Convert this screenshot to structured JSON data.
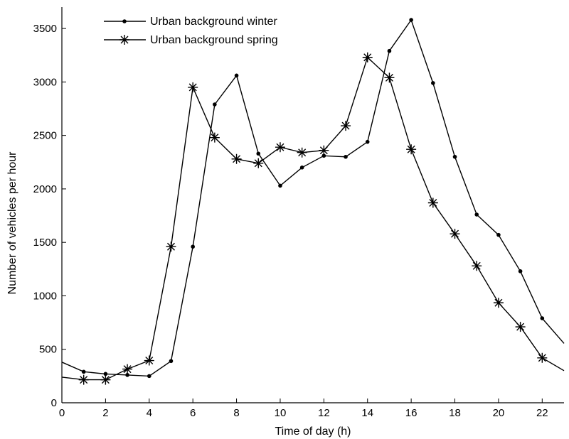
{
  "chart_data": {
    "type": "line",
    "title": "",
    "xlabel": "Time of day (h)",
    "ylabel": "Number of vehicles per hour",
    "xlim": [
      0,
      23
    ],
    "ylim": [
      0,
      3700
    ],
    "xticks": [
      0,
      2,
      4,
      6,
      8,
      10,
      12,
      14,
      16,
      18,
      20,
      22
    ],
    "yticks": [
      0,
      500,
      1000,
      1500,
      2000,
      2500,
      3000,
      3500
    ],
    "grid": false,
    "legend_position": "top-left",
    "x": [
      0,
      1,
      2,
      3,
      4,
      5,
      6,
      7,
      8,
      9,
      10,
      11,
      12,
      13,
      14,
      15,
      16,
      17,
      18,
      19,
      20,
      21,
      22,
      23
    ],
    "series": [
      {
        "name": "Urban background winter",
        "marker": "dot",
        "color": "#000000",
        "values": [
          380,
          290,
          270,
          260,
          250,
          390,
          1460,
          2790,
          3060,
          2330,
          2030,
          2200,
          2310,
          2300,
          2440,
          3290,
          3580,
          2990,
          2300,
          1760,
          1570,
          1230,
          790,
          555
        ]
      },
      {
        "name": "Urban background spring",
        "marker": "asterisk",
        "color": "#000000",
        "values": [
          240,
          215,
          215,
          315,
          395,
          1460,
          2950,
          2480,
          2280,
          2240,
          2390,
          2340,
          2360,
          2590,
          3230,
          3040,
          2370,
          1870,
          1580,
          1280,
          935,
          710,
          420,
          300
        ]
      }
    ]
  }
}
